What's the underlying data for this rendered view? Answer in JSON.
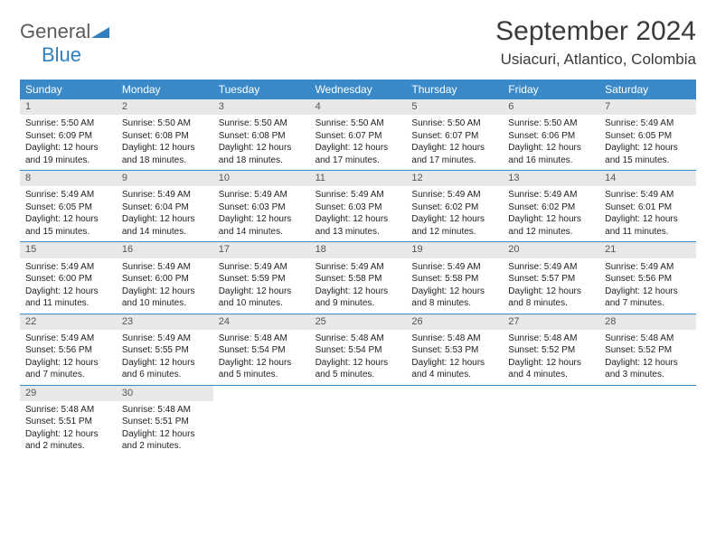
{
  "brand": {
    "text1": "General",
    "text2": "Blue",
    "icon_color": "#2f7fbf"
  },
  "title": "September 2024",
  "location": "Usiacuri, Atlantico, Colombia",
  "colors": {
    "header_bg": "#3a8ac9",
    "header_text": "#ffffff",
    "daynum_bg": "#e8e8e8",
    "daynum_text": "#555555",
    "body_text": "#222222",
    "row_border": "#3a8ac9",
    "page_bg": "#ffffff",
    "title_color": "#3a3a3a"
  },
  "weekdays": [
    "Sunday",
    "Monday",
    "Tuesday",
    "Wednesday",
    "Thursday",
    "Friday",
    "Saturday"
  ],
  "weeks": [
    [
      {
        "n": "1",
        "sr": "Sunrise: 5:50 AM",
        "ss": "Sunset: 6:09 PM",
        "dl": "Daylight: 12 hours and 19 minutes."
      },
      {
        "n": "2",
        "sr": "Sunrise: 5:50 AM",
        "ss": "Sunset: 6:08 PM",
        "dl": "Daylight: 12 hours and 18 minutes."
      },
      {
        "n": "3",
        "sr": "Sunrise: 5:50 AM",
        "ss": "Sunset: 6:08 PM",
        "dl": "Daylight: 12 hours and 18 minutes."
      },
      {
        "n": "4",
        "sr": "Sunrise: 5:50 AM",
        "ss": "Sunset: 6:07 PM",
        "dl": "Daylight: 12 hours and 17 minutes."
      },
      {
        "n": "5",
        "sr": "Sunrise: 5:50 AM",
        "ss": "Sunset: 6:07 PM",
        "dl": "Daylight: 12 hours and 17 minutes."
      },
      {
        "n": "6",
        "sr": "Sunrise: 5:50 AM",
        "ss": "Sunset: 6:06 PM",
        "dl": "Daylight: 12 hours and 16 minutes."
      },
      {
        "n": "7",
        "sr": "Sunrise: 5:49 AM",
        "ss": "Sunset: 6:05 PM",
        "dl": "Daylight: 12 hours and 15 minutes."
      }
    ],
    [
      {
        "n": "8",
        "sr": "Sunrise: 5:49 AM",
        "ss": "Sunset: 6:05 PM",
        "dl": "Daylight: 12 hours and 15 minutes."
      },
      {
        "n": "9",
        "sr": "Sunrise: 5:49 AM",
        "ss": "Sunset: 6:04 PM",
        "dl": "Daylight: 12 hours and 14 minutes."
      },
      {
        "n": "10",
        "sr": "Sunrise: 5:49 AM",
        "ss": "Sunset: 6:03 PM",
        "dl": "Daylight: 12 hours and 14 minutes."
      },
      {
        "n": "11",
        "sr": "Sunrise: 5:49 AM",
        "ss": "Sunset: 6:03 PM",
        "dl": "Daylight: 12 hours and 13 minutes."
      },
      {
        "n": "12",
        "sr": "Sunrise: 5:49 AM",
        "ss": "Sunset: 6:02 PM",
        "dl": "Daylight: 12 hours and 12 minutes."
      },
      {
        "n": "13",
        "sr": "Sunrise: 5:49 AM",
        "ss": "Sunset: 6:02 PM",
        "dl": "Daylight: 12 hours and 12 minutes."
      },
      {
        "n": "14",
        "sr": "Sunrise: 5:49 AM",
        "ss": "Sunset: 6:01 PM",
        "dl": "Daylight: 12 hours and 11 minutes."
      }
    ],
    [
      {
        "n": "15",
        "sr": "Sunrise: 5:49 AM",
        "ss": "Sunset: 6:00 PM",
        "dl": "Daylight: 12 hours and 11 minutes."
      },
      {
        "n": "16",
        "sr": "Sunrise: 5:49 AM",
        "ss": "Sunset: 6:00 PM",
        "dl": "Daylight: 12 hours and 10 minutes."
      },
      {
        "n": "17",
        "sr": "Sunrise: 5:49 AM",
        "ss": "Sunset: 5:59 PM",
        "dl": "Daylight: 12 hours and 10 minutes."
      },
      {
        "n": "18",
        "sr": "Sunrise: 5:49 AM",
        "ss": "Sunset: 5:58 PM",
        "dl": "Daylight: 12 hours and 9 minutes."
      },
      {
        "n": "19",
        "sr": "Sunrise: 5:49 AM",
        "ss": "Sunset: 5:58 PM",
        "dl": "Daylight: 12 hours and 8 minutes."
      },
      {
        "n": "20",
        "sr": "Sunrise: 5:49 AM",
        "ss": "Sunset: 5:57 PM",
        "dl": "Daylight: 12 hours and 8 minutes."
      },
      {
        "n": "21",
        "sr": "Sunrise: 5:49 AM",
        "ss": "Sunset: 5:56 PM",
        "dl": "Daylight: 12 hours and 7 minutes."
      }
    ],
    [
      {
        "n": "22",
        "sr": "Sunrise: 5:49 AM",
        "ss": "Sunset: 5:56 PM",
        "dl": "Daylight: 12 hours and 7 minutes."
      },
      {
        "n": "23",
        "sr": "Sunrise: 5:49 AM",
        "ss": "Sunset: 5:55 PM",
        "dl": "Daylight: 12 hours and 6 minutes."
      },
      {
        "n": "24",
        "sr": "Sunrise: 5:48 AM",
        "ss": "Sunset: 5:54 PM",
        "dl": "Daylight: 12 hours and 5 minutes."
      },
      {
        "n": "25",
        "sr": "Sunrise: 5:48 AM",
        "ss": "Sunset: 5:54 PM",
        "dl": "Daylight: 12 hours and 5 minutes."
      },
      {
        "n": "26",
        "sr": "Sunrise: 5:48 AM",
        "ss": "Sunset: 5:53 PM",
        "dl": "Daylight: 12 hours and 4 minutes."
      },
      {
        "n": "27",
        "sr": "Sunrise: 5:48 AM",
        "ss": "Sunset: 5:52 PM",
        "dl": "Daylight: 12 hours and 4 minutes."
      },
      {
        "n": "28",
        "sr": "Sunrise: 5:48 AM",
        "ss": "Sunset: 5:52 PM",
        "dl": "Daylight: 12 hours and 3 minutes."
      }
    ],
    [
      {
        "n": "29",
        "sr": "Sunrise: 5:48 AM",
        "ss": "Sunset: 5:51 PM",
        "dl": "Daylight: 12 hours and 2 minutes."
      },
      {
        "n": "30",
        "sr": "Sunrise: 5:48 AM",
        "ss": "Sunset: 5:51 PM",
        "dl": "Daylight: 12 hours and 2 minutes."
      },
      null,
      null,
      null,
      null,
      null
    ]
  ]
}
